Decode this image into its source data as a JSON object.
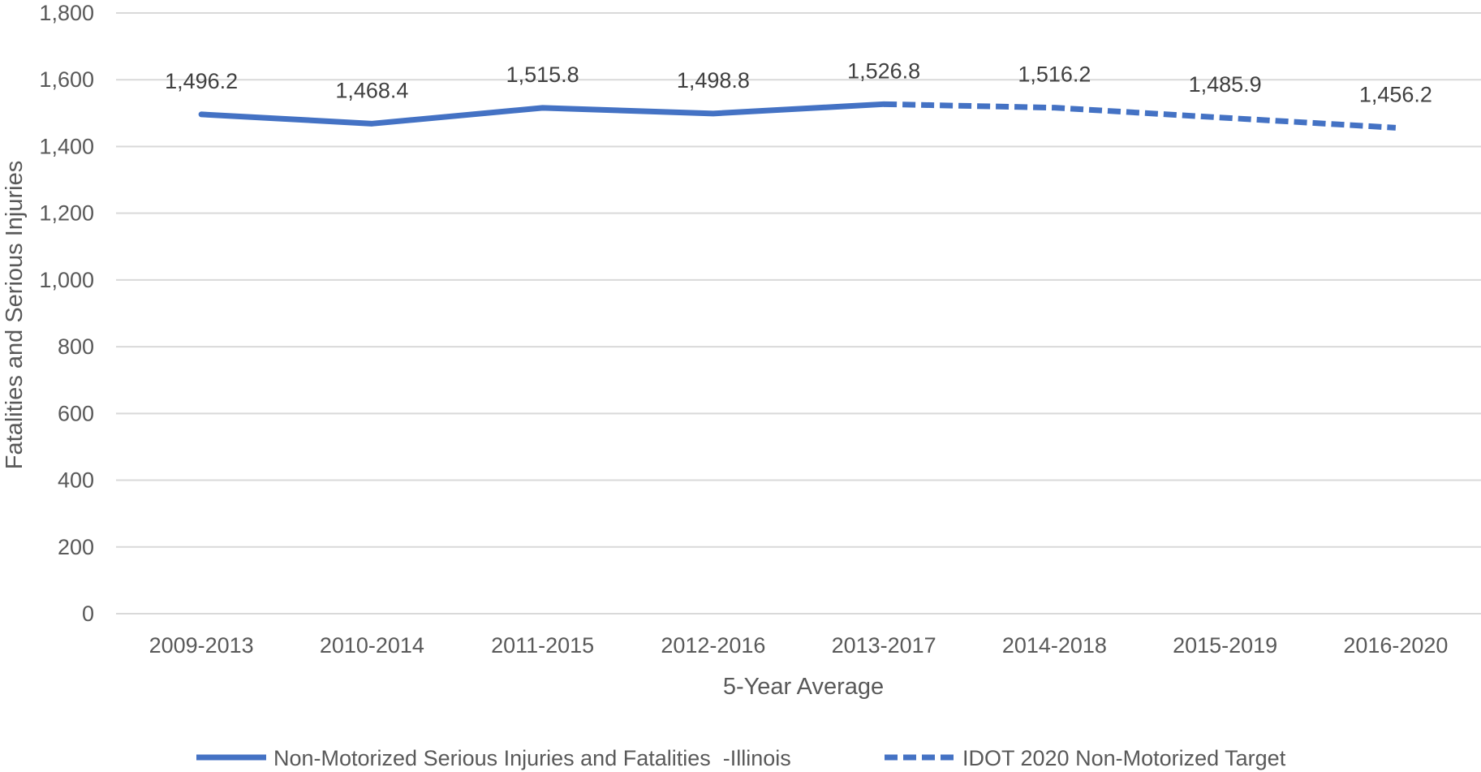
{
  "chart_data": {
    "type": "line",
    "categories": [
      "2009-2013",
      "2010-2014",
      "2011-2015",
      "2012-2016",
      "2013-2017",
      "2014-2018",
      "2015-2019",
      "2016-2020"
    ],
    "series": [
      {
        "name": "Non-Motorized Serious Injuries and Fatalities  -Illinois",
        "style": "solid",
        "color": "#4472C4",
        "points": [
          {
            "category": "2009-2013",
            "value": 1496.2,
            "label": "1,496.2"
          },
          {
            "category": "2010-2014",
            "value": 1468.4,
            "label": "1,468.4"
          },
          {
            "category": "2011-2015",
            "value": 1515.8,
            "label": "1,515.8"
          },
          {
            "category": "2012-2016",
            "value": 1498.8,
            "label": "1,498.8"
          },
          {
            "category": "2013-2017",
            "value": 1526.8,
            "label": "1,526.8"
          }
        ]
      },
      {
        "name": "IDOT 2020 Non-Motorized Target",
        "style": "dashed",
        "color": "#4472C4",
        "points": [
          {
            "category": "2013-2017",
            "value": 1526.8,
            "label": ""
          },
          {
            "category": "2014-2018",
            "value": 1516.2,
            "label": "1,516.2"
          },
          {
            "category": "2015-2019",
            "value": 1485.9,
            "label": "1,485.9"
          },
          {
            "category": "2016-2020",
            "value": 1456.2,
            "label": "1,456.2"
          }
        ]
      }
    ],
    "xlabel": "5-Year Average",
    "ylabel": "Fatalities and Serious Injuries",
    "ylim": [
      0,
      1800
    ],
    "yticks": [
      0,
      200,
      400,
      600,
      800,
      1000,
      1200,
      1400,
      1600,
      1800
    ],
    "ytick_labels": [
      "0",
      "200",
      "400",
      "600",
      "800",
      "1,000",
      "1,200",
      "1,400",
      "1,600",
      "1,800"
    ],
    "grid": "horizontal",
    "legend_position": "bottom",
    "gridline_color": "#D9D9D9",
    "text_color": "#595959"
  }
}
